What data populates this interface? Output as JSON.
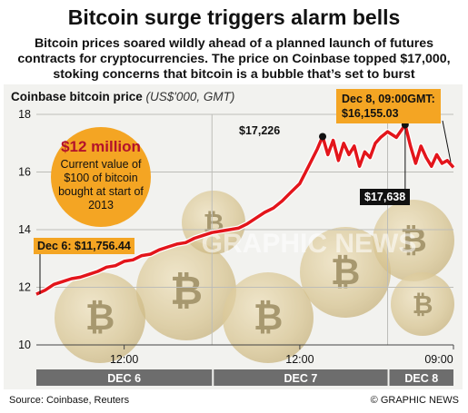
{
  "title": "Bitcoin surge triggers alarm bells",
  "subtitle": "Bitcoin prices soared wildly ahead of a planned launch of futures contracts for cryptocurrencies. The price on Coinbase topped $17,000, stoking concerns that bitcoin is a bubble that’s set to burst",
  "plot_label": "Coinbase bitcoin price",
  "plot_unit": "(US$'000, GMT)",
  "callout": {
    "value": "$12 million",
    "text": "Current value of $100 of bitcoin bought at start of 2013"
  },
  "annotations": {
    "start": "Dec 6: $11,756.44",
    "end_line1": "Dec 8, 09:00GMT:",
    "end_line2": "$16,155.03",
    "peak": "$17,226",
    "second_peak": "$17,638"
  },
  "watermark": "GRAPHIC NEWS",
  "source": "Source: Coinbase, Reuters",
  "credit": "© GRAPHIC NEWS",
  "colors": {
    "line": "#e3151b",
    "callout": "#f4a523",
    "day_bar": "#6d6d6d",
    "marker": "#111111"
  },
  "chart_data": {
    "type": "line",
    "title": "",
    "ylabel": "",
    "ylim": [
      10,
      18
    ],
    "yticks": [
      10,
      12,
      14,
      16,
      18
    ],
    "xlim": [
      0,
      2.375
    ],
    "x_unit": "days since Dec 6 00:00 GMT",
    "x_ticks": [
      {
        "x": 0.5,
        "label": "12:00"
      },
      {
        "x": 1.5,
        "label": "12:00"
      },
      {
        "x": 2.375,
        "label": "09:00"
      }
    ],
    "day_bars": [
      {
        "label": "DEC 6",
        "from": 0,
        "to": 1
      },
      {
        "label": "DEC 7",
        "from": 1,
        "to": 2
      },
      {
        "label": "DEC 8",
        "from": 2,
        "to": 2.375
      }
    ],
    "grid": true,
    "series": [
      {
        "name": "",
        "points": [
          [
            0.0,
            11.76
          ],
          [
            0.05,
            11.9
          ],
          [
            0.1,
            12.1
          ],
          [
            0.15,
            12.2
          ],
          [
            0.2,
            12.3
          ],
          [
            0.25,
            12.35
          ],
          [
            0.3,
            12.45
          ],
          [
            0.35,
            12.55
          ],
          [
            0.4,
            12.7
          ],
          [
            0.45,
            12.75
          ],
          [
            0.5,
            12.9
          ],
          [
            0.55,
            12.95
          ],
          [
            0.6,
            13.1
          ],
          [
            0.65,
            13.15
          ],
          [
            0.7,
            13.3
          ],
          [
            0.75,
            13.4
          ],
          [
            0.8,
            13.5
          ],
          [
            0.85,
            13.55
          ],
          [
            0.9,
            13.7
          ],
          [
            0.95,
            13.8
          ],
          [
            1.0,
            13.9
          ],
          [
            1.05,
            13.95
          ],
          [
            1.1,
            14.0
          ],
          [
            1.15,
            14.05
          ],
          [
            1.2,
            14.2
          ],
          [
            1.25,
            14.4
          ],
          [
            1.3,
            14.6
          ],
          [
            1.35,
            14.75
          ],
          [
            1.4,
            15.0
          ],
          [
            1.45,
            15.3
          ],
          [
            1.5,
            15.6
          ],
          [
            1.55,
            16.2
          ],
          [
            1.6,
            16.8
          ],
          [
            1.63,
            17.23
          ],
          [
            1.66,
            16.6
          ],
          [
            1.69,
            17.1
          ],
          [
            1.72,
            16.4
          ],
          [
            1.75,
            17.0
          ],
          [
            1.78,
            16.6
          ],
          [
            1.81,
            16.9
          ],
          [
            1.84,
            16.2
          ],
          [
            1.87,
            16.7
          ],
          [
            1.9,
            16.5
          ],
          [
            1.93,
            17.0
          ],
          [
            1.96,
            17.2
          ],
          [
            2.0,
            17.4
          ],
          [
            2.05,
            17.2
          ],
          [
            2.1,
            17.64
          ],
          [
            2.13,
            16.9
          ],
          [
            2.16,
            16.3
          ],
          [
            2.19,
            16.9
          ],
          [
            2.22,
            16.5
          ],
          [
            2.25,
            16.2
          ],
          [
            2.28,
            16.6
          ],
          [
            2.31,
            16.3
          ],
          [
            2.34,
            16.4
          ],
          [
            2.375,
            16.16
          ]
        ]
      }
    ],
    "markers": [
      {
        "x": 1.63,
        "y": 17.23,
        "label": "$17,226"
      },
      {
        "x": 2.1,
        "y": 17.64,
        "label": "$17,638"
      }
    ]
  }
}
